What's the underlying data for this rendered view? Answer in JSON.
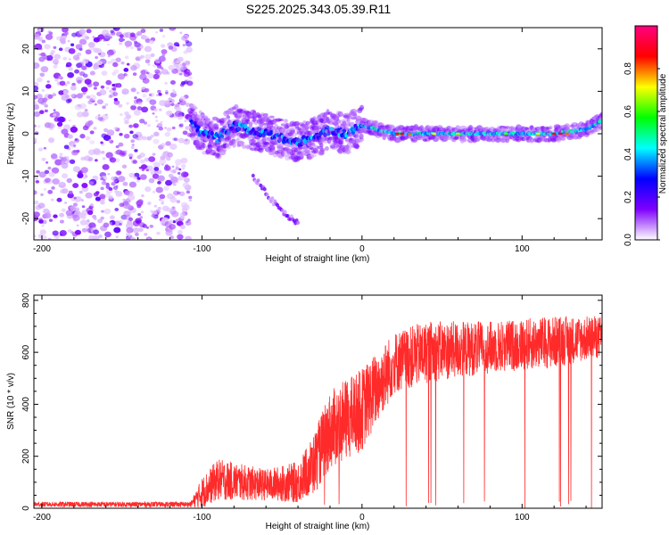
{
  "title": "S225.2025.343.05.39.R11",
  "chart_data": [
    {
      "type": "heatmap",
      "title": "S225.2025.343.05.39.R11",
      "xlabel": "Height of straight line (km)",
      "ylabel": "Frequency (Hz)",
      "xlim": [
        -205,
        150
      ],
      "ylim": [
        -25,
        25
      ],
      "xticks": [
        -200,
        -100,
        0,
        100
      ],
      "yticks": [
        -20,
        -10,
        0,
        10,
        20
      ],
      "colorbar": {
        "label": "Normalized spectral amplitude",
        "range": [
          0,
          1
        ],
        "ticks": [
          "0.0",
          "0.2",
          "0.4",
          "0.6",
          "0.8"
        ],
        "tick_values": [
          0.0,
          0.2,
          0.4,
          0.6,
          0.8
        ],
        "colors": [
          "#ffffff",
          "#7f00ff",
          "#0000ff",
          "#00ffff",
          "#00ff00",
          "#ffff00",
          "#ff0000",
          "#ff0080"
        ]
      },
      "regions": [
        {
          "name": "noise",
          "x_range": [
            -205,
            -107
          ],
          "freq_range": [
            -25,
            25
          ],
          "amplitude": 0.1
        },
        {
          "name": "main-ridge",
          "points": [
            [
              -107,
              3
            ],
            [
              -100,
              0
            ],
            [
              -90,
              -1
            ],
            [
              -80,
              2
            ],
            [
              -70,
              1
            ],
            [
              -60,
              0
            ],
            [
              -50,
              -1
            ],
            [
              -40,
              -2
            ],
            [
              -30,
              -1
            ],
            [
              -20,
              1
            ],
            [
              -10,
              0
            ],
            [
              0,
              2
            ],
            [
              20,
              0
            ],
            [
              40,
              0
            ],
            [
              60,
              0
            ],
            [
              80,
              0
            ],
            [
              100,
              0
            ],
            [
              120,
              0
            ],
            [
              140,
              1
            ],
            [
              150,
              3
            ]
          ],
          "amplitude": 0.6
        },
        {
          "name": "diagonal-branch",
          "points": [
            [
              -68,
              -10
            ],
            [
              -58,
              -15
            ],
            [
              -48,
              -19
            ],
            [
              -40,
              -21
            ]
          ],
          "amplitude": 0.15
        }
      ]
    },
    {
      "type": "line",
      "xlabel": "Height of straight line (km)",
      "ylabel": "SNR (10 * v/v)",
      "xlim": [
        -205,
        150
      ],
      "ylim": [
        0,
        820
      ],
      "xticks": [
        -200,
        -100,
        0,
        100
      ],
      "yticks": [
        0,
        200,
        400,
        600,
        800
      ],
      "color": "#ff0000",
      "envelope": [
        {
          "x": -205,
          "mean": 15,
          "spread": 10
        },
        {
          "x": -107,
          "mean": 15,
          "spread": 10
        },
        {
          "x": -100,
          "mean": 60,
          "spread": 60
        },
        {
          "x": -90,
          "mean": 110,
          "spread": 80
        },
        {
          "x": -60,
          "mean": 90,
          "spread": 60
        },
        {
          "x": -40,
          "mean": 100,
          "spread": 80
        },
        {
          "x": -30,
          "mean": 170,
          "spread": 120
        },
        {
          "x": -20,
          "mean": 300,
          "spread": 150
        },
        {
          "x": 0,
          "mean": 380,
          "spread": 160
        },
        {
          "x": 20,
          "mean": 560,
          "spread": 120
        },
        {
          "x": 40,
          "mean": 600,
          "spread": 120
        },
        {
          "x": 80,
          "mean": 620,
          "spread": 100
        },
        {
          "x": 120,
          "mean": 640,
          "spread": 100
        },
        {
          "x": 150,
          "mean": 660,
          "spread": 80
        }
      ]
    }
  ]
}
